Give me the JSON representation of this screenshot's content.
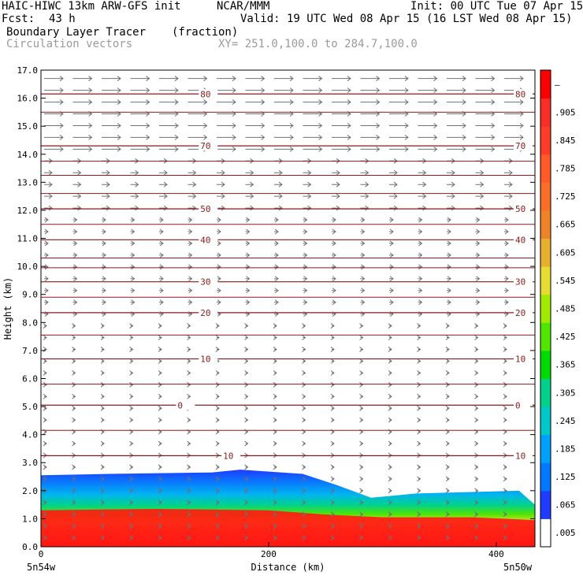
{
  "header": {
    "model": "HAIC-HIWC 13km ARW-GFS init",
    "org": "NCAR/MMM",
    "init": "Init: 00 UTC Tue 07 Apr 15",
    "fcst_label": "Fcst:",
    "fcst_value": "43 h",
    "valid": "Valid: 19 UTC Wed 08 Apr 15 (16 LST Wed 08 Apr 15)",
    "field": "Boundary Layer Tracer",
    "field_units": "(fraction)",
    "vectors": "Circulation vectors",
    "xy": "XY= 251.0,100.0 to 284.7,100.0"
  },
  "chart_data": {
    "type": "heatmap",
    "title": "Boundary Layer Tracer",
    "xlabel": "Distance (km)",
    "ylabel": "Height (km)",
    "xlim": [
      0,
      434
    ],
    "ylim": [
      0,
      17
    ],
    "x_ticks": [
      "0",
      "200",
      "400"
    ],
    "x_tick_values": [
      0,
      200,
      400
    ],
    "x_endpoints": [
      "5n54w",
      "5n50w"
    ],
    "y_ticks": [
      "0.0",
      "1.0",
      "2.0",
      "3.0",
      "4.0",
      "5.0",
      "6.0",
      "7.0",
      "8.0",
      "9.0",
      "10.0",
      "11.0",
      "12.0",
      "13.0",
      "14.0",
      "15.0",
      "16.0",
      "17.0"
    ],
    "colorbar": {
      "labels": [
        ".005",
        ".065",
        ".125",
        ".185",
        ".245",
        ".305",
        ".365",
        ".425",
        ".485",
        ".545",
        ".605",
        ".665",
        ".725",
        ".785",
        ".845",
        ".905",
        "–"
      ],
      "colors": [
        "#ffffff",
        "#1e3cff",
        "#0078ff",
        "#00a0ff",
        "#00c8c8",
        "#00d28c",
        "#00dc00",
        "#50e600",
        "#a0eb00",
        "#e6dc32",
        "#e6af2d",
        "#f08228",
        "#fa6e28",
        "#ff5a28",
        "#ff3c28",
        "#fa2d28",
        "#ff0000"
      ]
    },
    "temperature_contours": [
      {
        "label": "80",
        "height": 16.15
      },
      {
        "label": "70",
        "height": 14.3
      },
      {
        "label": "50",
        "height": 12.05
      },
      {
        "label": "40",
        "height": 10.95
      },
      {
        "label": "30",
        "height": 9.45
      },
      {
        "label": "20",
        "height": 8.35
      },
      {
        "label": "10",
        "height": 6.7
      },
      {
        "label": "0",
        "height": 5.05
      },
      {
        "label": "10",
        "height": 3.25
      }
    ],
    "tracer_field": {
      "top_profile_km": [
        [
          0,
          2.55
        ],
        [
          60,
          2.6
        ],
        [
          150,
          2.65
        ],
        [
          175,
          2.75
        ],
        [
          230,
          2.6
        ],
        [
          260,
          2.2
        ],
        [
          290,
          1.75
        ],
        [
          330,
          1.9
        ],
        [
          420,
          2.0
        ],
        [
          434,
          1.5
        ]
      ],
      "red_top_profile_km": [
        [
          0,
          1.3
        ],
        [
          100,
          1.35
        ],
        [
          200,
          1.3
        ],
        [
          250,
          1.15
        ],
        [
          300,
          1.05
        ],
        [
          380,
          1.05
        ],
        [
          434,
          0.95
        ]
      ]
    }
  }
}
